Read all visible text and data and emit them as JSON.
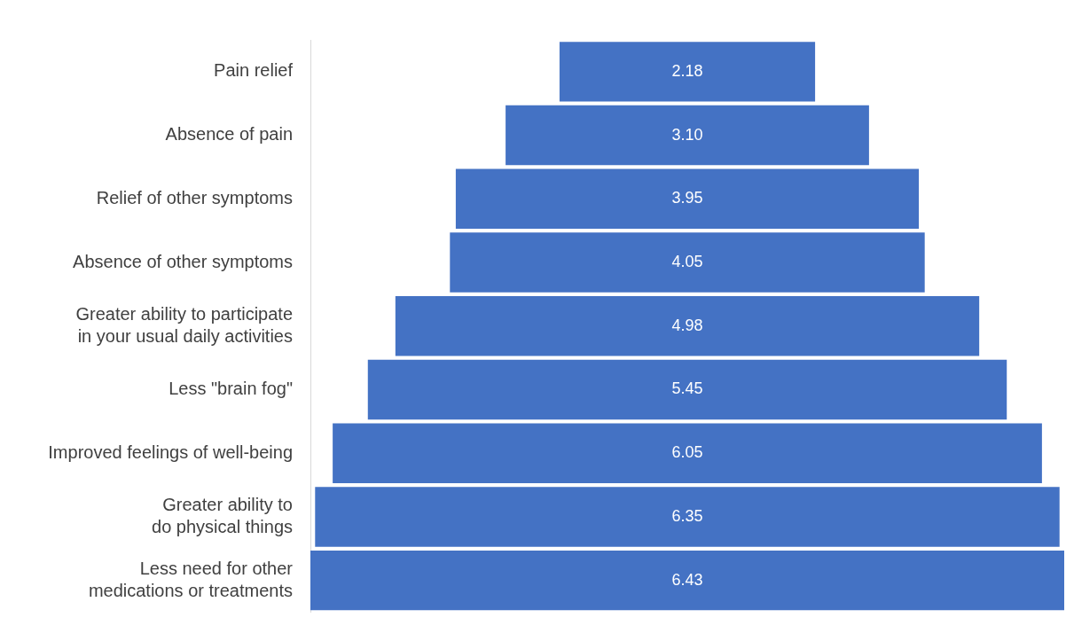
{
  "chart_data": {
    "type": "other",
    "categories": [
      "Pain relief",
      "Absence of pain",
      "Relief of other symptoms",
      "Absence of other symptoms",
      "Greater ability to participate in your usual daily activities",
      "Less \"brain fog\"",
      "Improved feelings of well-being",
      "Greater ability to do physical things",
      "Less need for other medications or treatments"
    ],
    "values": [
      2.18,
      3.1,
      3.95,
      4.05,
      4.98,
      5.45,
      6.05,
      6.35,
      6.43
    ],
    "color": "#4472c4",
    "value_labels": [
      "2.18",
      "3.10",
      "3.95",
      "4.05",
      "4.98",
      "5.45",
      "6.05",
      "6.35",
      "6.43"
    ]
  }
}
